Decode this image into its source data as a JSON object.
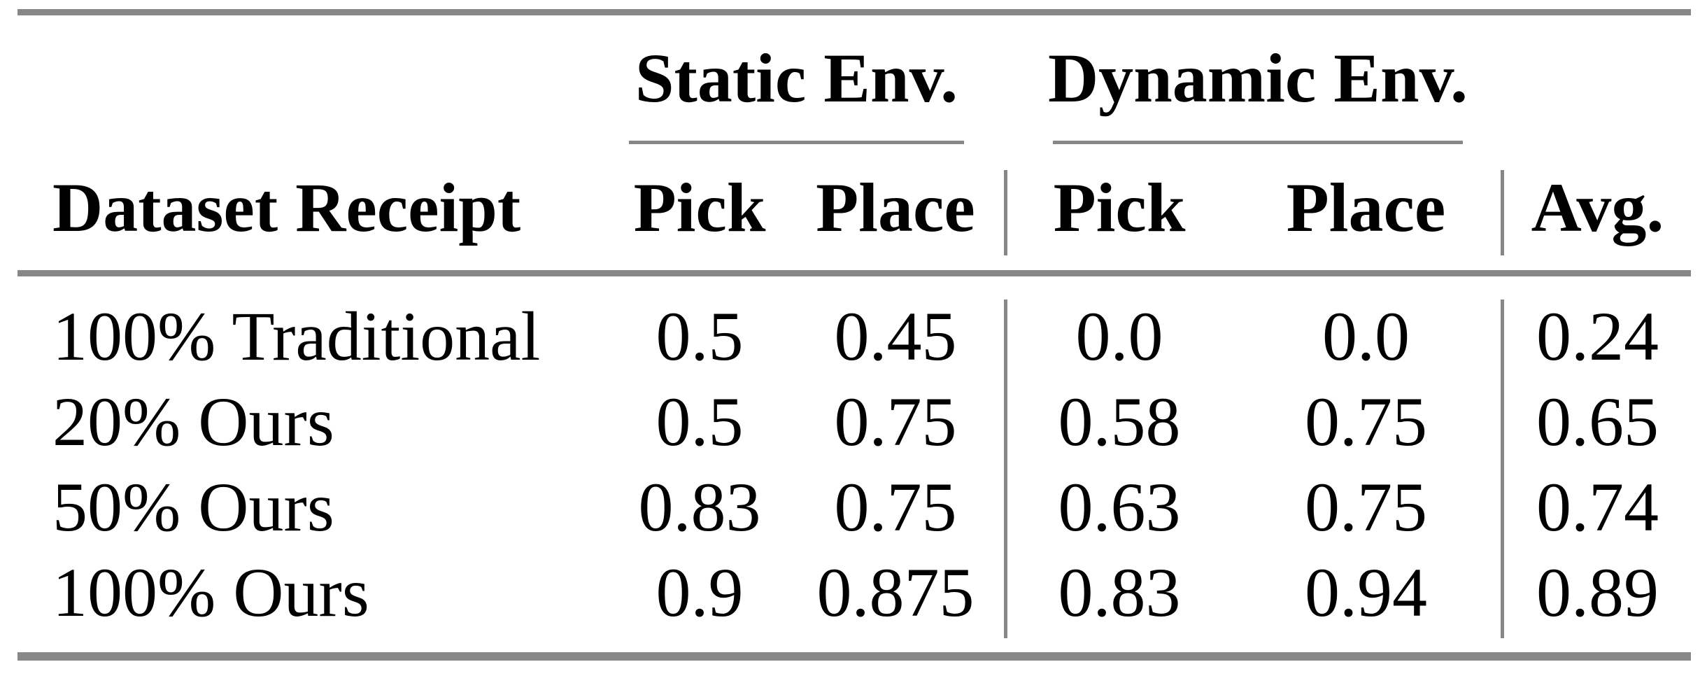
{
  "table": {
    "colors": {
      "rule_gray": "#878787",
      "text": "#000000",
      "background": "#ffffff"
    },
    "col_groups": {
      "static": {
        "label": "Static Env."
      },
      "dynamic": {
        "label": "Dynamic Env."
      }
    },
    "headers": {
      "dataset": "Dataset Receipt",
      "static_pick": "Pick",
      "static_place": "Place",
      "dynamic_pick": "Pick",
      "dynamic_place": "Place",
      "avg": "Avg."
    },
    "rows": [
      {
        "dataset": "100% Traditional",
        "static_pick": "0.5",
        "static_place": "0.45",
        "dynamic_pick": "0.0",
        "dynamic_place": "0.0",
        "avg": "0.24"
      },
      {
        "dataset": "20% Ours",
        "static_pick": "0.5",
        "static_place": "0.75",
        "dynamic_pick": "0.58",
        "dynamic_place": "0.75",
        "avg": "0.65"
      },
      {
        "dataset": "50% Ours",
        "static_pick": "0.83",
        "static_place": "0.75",
        "dynamic_pick": "0.63",
        "dynamic_place": "0.75",
        "avg": "0.74"
      },
      {
        "dataset": "100% Ours",
        "static_pick": "0.9",
        "static_place": "0.875",
        "dynamic_pick": "0.83",
        "dynamic_place": "0.94",
        "avg": "0.89"
      }
    ]
  }
}
